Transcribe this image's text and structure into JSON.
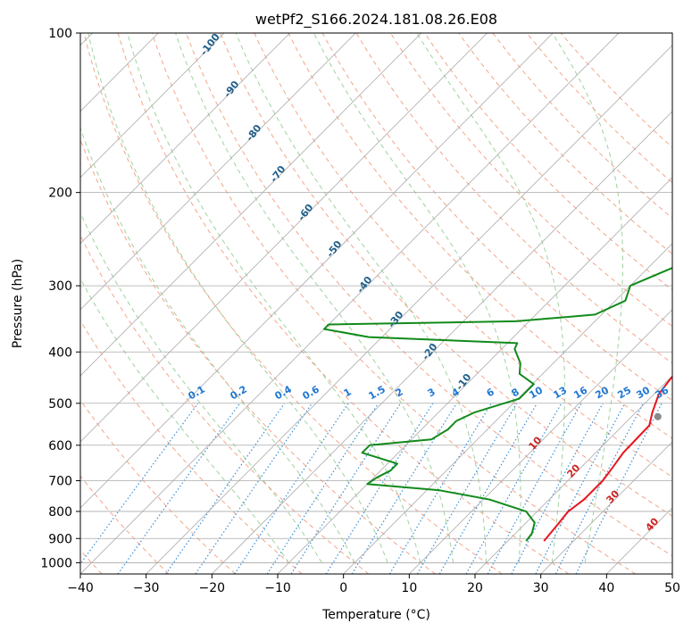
{
  "chart_data": {
    "type": "skew-t",
    "title": "wetPf2_S166.2024.181.08.26.E08",
    "xlabel": "Temperature (°C)",
    "ylabel": "Pressure (hPa)",
    "xlim": [
      -40,
      50
    ],
    "ylim": [
      1050,
      100
    ],
    "y_log_scale": true,
    "grid": true,
    "x_ticks": [
      -40,
      -30,
      -20,
      -10,
      0,
      10,
      20,
      30,
      40,
      50
    ],
    "x_tick_labels": [
      "−40",
      "−30",
      "−20",
      "−10",
      "0",
      "10",
      "20",
      "30",
      "40",
      "50"
    ],
    "y_ticks": [
      1000,
      900,
      800,
      700,
      600,
      500,
      400,
      300,
      200,
      100
    ],
    "y_tick_labels": [
      "1000",
      "900",
      "800",
      "700",
      "600",
      "500",
      "400",
      "300",
      "200",
      "100"
    ],
    "colors": {
      "temperature": "#e8141c",
      "dewpoint": "#118a1a",
      "isotherms": "#aaaaaa",
      "dry_adiabats": "#f4a58a",
      "moist_adiabats": "#9ed29e",
      "mixing_ratio": "#3a8fd6",
      "lcl_marker": "#8a8a8a"
    },
    "series": [
      {
        "key": "temperature",
        "points": [
          [
            25.5,
            910
          ],
          [
            25.1,
            850
          ],
          [
            24.7,
            800
          ],
          [
            25.3,
            760
          ],
          [
            25.3,
            700
          ],
          [
            24.8,
            660
          ],
          [
            24.2,
            620
          ],
          [
            24.1,
            580
          ],
          [
            24.0,
            550
          ],
          [
            22.5,
            520
          ],
          [
            20.7,
            480
          ],
          [
            20.2,
            450
          ],
          [
            19.9,
            420
          ],
          [
            19.5,
            395
          ],
          [
            18.0,
            380
          ],
          [
            17.8,
            360
          ],
          [
            16.3,
            345
          ],
          [
            14.6,
            330
          ],
          [
            13.8,
            300
          ],
          [
            12.8,
            270
          ],
          [
            11.8,
            245
          ],
          [
            10.5,
            220
          ],
          [
            8.5,
            200
          ],
          [
            6.0,
            180
          ],
          [
            3.5,
            165
          ],
          [
            2.8,
            150
          ],
          [
            1.5,
            135
          ],
          [
            1.0,
            125
          ],
          [
            0.2,
            115
          ],
          [
            -0.2,
            100
          ]
        ]
      },
      {
        "key": "dewpoint",
        "points": [
          [
            22.8,
            910
          ],
          [
            22.5,
            880
          ],
          [
            21.3,
            840
          ],
          [
            18.3,
            800
          ],
          [
            11.0,
            760
          ],
          [
            2.0,
            730
          ],
          [
            -10.0,
            710
          ],
          [
            -9.5,
            690
          ],
          [
            -8.5,
            670
          ],
          [
            -8.5,
            650
          ],
          [
            -15.5,
            620
          ],
          [
            -15.5,
            600
          ],
          [
            -7.0,
            585
          ],
          [
            -6.0,
            560
          ],
          [
            -6.0,
            540
          ],
          [
            -4.5,
            520
          ],
          [
            0.2,
            490
          ],
          [
            0.2,
            460
          ],
          [
            -3.5,
            440
          ],
          [
            -5.0,
            420
          ],
          [
            -8.0,
            395
          ],
          [
            -8.5,
            385
          ],
          [
            -32.0,
            375
          ],
          [
            -40.0,
            362
          ],
          [
            -40.0,
            355
          ],
          [
            -12.0,
            350
          ],
          [
            -1.0,
            340
          ],
          [
            1.5,
            320
          ],
          [
            0,
            300
          ],
          [
            5.0,
            270
          ],
          [
            6.0,
            250
          ],
          [
            5.5,
            230
          ],
          [
            3.5,
            210
          ],
          [
            2.0,
            190
          ],
          [
            1.0,
            180
          ],
          [
            0.3,
            165
          ],
          [
            -1.3,
            150
          ],
          [
            -2.0,
            135
          ],
          [
            -2.0,
            120
          ],
          [
            -1.5,
            110
          ],
          [
            0.0,
            100
          ]
        ]
      }
    ],
    "lcl": {
      "t": 24.0,
      "p": 530
    },
    "isotherm_values": [
      -130,
      -120,
      -110,
      -100,
      -90,
      -80,
      -70,
      -60,
      -50,
      -40,
      -30,
      -20,
      -10,
      0,
      10,
      20,
      30,
      40,
      50
    ],
    "dry_adiabat_thetas_c": [
      -50,
      -40,
      -30,
      -20,
      -10,
      0,
      10,
      20,
      30,
      40,
      50,
      60,
      70,
      80,
      90,
      100,
      110,
      120,
      130,
      140,
      150,
      160
    ],
    "moist_adiabat_starts_c": [
      -10,
      -5,
      0,
      5,
      10,
      15,
      20,
      25,
      30,
      35
    ],
    "mixing_ratio_gkg": [
      "0.1",
      "0.2",
      "0.4",
      "0.6",
      "1",
      "1.5",
      "2",
      "3",
      "4",
      "6",
      "8",
      "10",
      "13",
      "16",
      "20",
      "25",
      "30",
      "36"
    ],
    "dry_adiabat_labels": [
      "-100",
      "-90",
      "-80",
      "-70",
      "-60",
      "-50",
      "-40",
      "-30",
      "-20",
      "-10"
    ],
    "moist_adiabat_labels": [
      "10",
      "20",
      "30",
      "40"
    ]
  }
}
